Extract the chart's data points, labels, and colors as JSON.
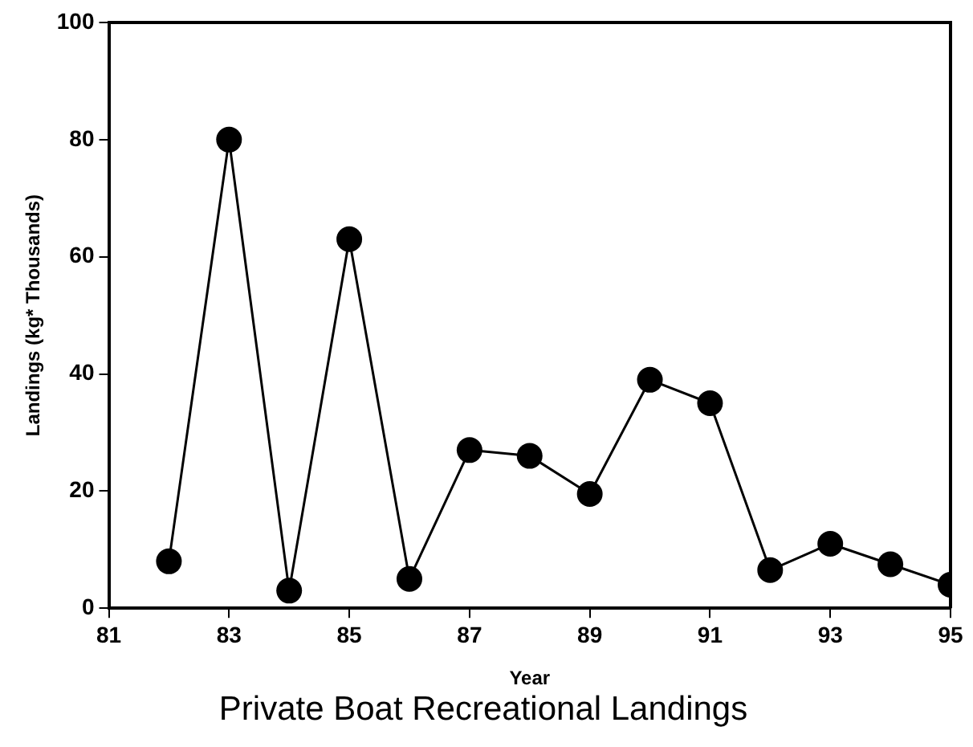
{
  "chart_data": {
    "type": "line",
    "title": "Private Boat Recreational Landings",
    "xlabel": "Year",
    "ylabel": "Landings (kg* Thousands)",
    "x": [
      82,
      83,
      84,
      85,
      86,
      87,
      88,
      89,
      90,
      91,
      92,
      93,
      94,
      95
    ],
    "series": [
      {
        "color": "#000000",
        "values": [
          8,
          80,
          3,
          63,
          5,
          27,
          26,
          19.5,
          39,
          35,
          6.5,
          11,
          7.5,
          4
        ]
      }
    ],
    "xlim": [
      81,
      95
    ],
    "xticks": [
      81,
      83,
      85,
      87,
      89,
      91,
      93,
      95
    ],
    "ylim": [
      0,
      100
    ],
    "yticks": [
      0,
      20,
      40,
      60,
      80,
      100
    ],
    "grid": false,
    "legend": false,
    "marker": "circle",
    "line_style": "solid"
  }
}
